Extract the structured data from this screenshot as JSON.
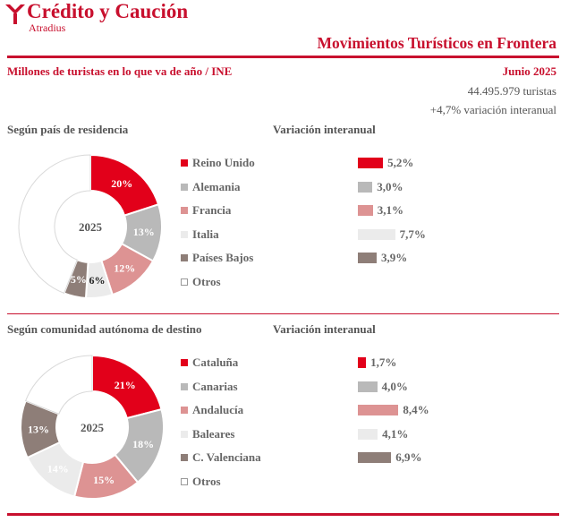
{
  "brand": {
    "name": "Crédito y Caución",
    "sub": "Atradius",
    "color": "#c8102e"
  },
  "header": {
    "title": "Movimientos Turísticos en Frontera",
    "subtitle": "Millones de turistas en lo que va de año / INE",
    "date": "Junio 2025",
    "total": "44.495.979 turistas",
    "variation": "+4,7% variación  interanual"
  },
  "colors": {
    "red": "#e2001a",
    "gray": "#b9b9b9",
    "pink": "#dd9393",
    "light": "#ebebeb",
    "brown": "#8e7e78",
    "white": "#ffffff"
  },
  "chart_data": [
    {
      "type": "pie",
      "title": "Según país de residencia",
      "center_label": "2025",
      "categories": [
        "Reino Unido",
        "Alemania",
        "Francia",
        "Italia",
        "Países Bajos",
        "Otros"
      ],
      "values": [
        20,
        13,
        12,
        6,
        5,
        44
      ],
      "labels": [
        "20%",
        "13%",
        "12%",
        "6%",
        "5%",
        ""
      ],
      "colors": [
        "#e2001a",
        "#b9b9b9",
        "#dd9393",
        "#ebebeb",
        "#8e7e78",
        "#ffffff"
      ],
      "variation_title": "Variación interanual",
      "variation_values": [
        5.2,
        3.0,
        3.1,
        7.7,
        3.9
      ],
      "variation_labels": [
        "5,2%",
        "3,0%",
        "3,1%",
        "7,7%",
        "3,9%"
      ]
    },
    {
      "type": "pie",
      "title": "Según comunidad autónoma de destino",
      "center_label": "2025",
      "categories": [
        "Cataluña",
        "Canarias",
        "Andalucía",
        "Baleares",
        "C. Valenciana",
        "Otros"
      ],
      "values": [
        21,
        18,
        15,
        14,
        13,
        19
      ],
      "labels": [
        "21%",
        "18%",
        "15%",
        "14%",
        "13%",
        ""
      ],
      "colors": [
        "#e2001a",
        "#b9b9b9",
        "#dd9393",
        "#ebebeb",
        "#8e7e78",
        "#ffffff"
      ],
      "variation_title": "Variación interanual",
      "variation_values": [
        1.7,
        4.0,
        8.4,
        4.1,
        6.9
      ],
      "variation_labels": [
        "1,7%",
        "4,0%",
        "8,4%",
        "4,1%",
        "6,9%"
      ]
    }
  ]
}
